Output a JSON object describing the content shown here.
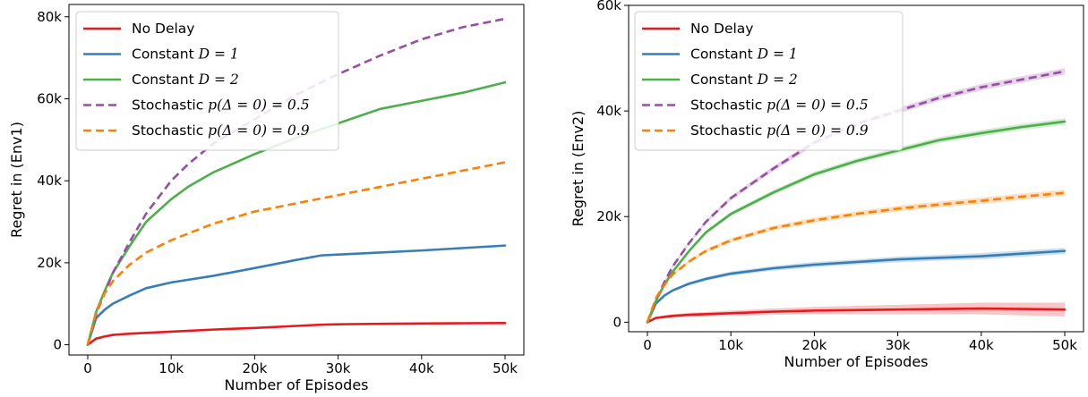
{
  "chart_data": [
    {
      "type": "line",
      "title": "",
      "xlabel": "Number of Episodes",
      "ylabel": "Regret in (Env1)",
      "xlim": [
        0,
        50000
      ],
      "ylim": [
        0,
        83000
      ],
      "xticks": [
        0,
        10000,
        20000,
        30000,
        40000,
        50000
      ],
      "xtick_labels": [
        "0",
        "10k",
        "20k",
        "30k",
        "40k",
        "50k"
      ],
      "yticks": [
        0,
        20000,
        40000,
        60000,
        80000
      ],
      "ytick_labels": [
        "0",
        "20k",
        "40k",
        "60k",
        "80k"
      ],
      "grid": false,
      "legend_position": "top-left",
      "series": [
        {
          "name": "No Delay",
          "color": "#e41a1c",
          "style": "solid",
          "label_math": "",
          "x": [
            0,
            1000,
            2000,
            3000,
            5000,
            10000,
            15000,
            20000,
            25000,
            28000,
            30000,
            35000,
            40000,
            45000,
            50000
          ],
          "values": [
            0,
            1500,
            2000,
            2400,
            2700,
            3200,
            3700,
            4100,
            4600,
            4900,
            5000,
            5100,
            5200,
            5250,
            5300
          ]
        },
        {
          "name": "Constant ",
          "color": "#377eb8",
          "style": "solid",
          "label_math": "D = 1",
          "x": [
            0,
            1000,
            2000,
            3000,
            5000,
            7000,
            10000,
            15000,
            20000,
            25000,
            28000,
            30000,
            35000,
            40000,
            45000,
            50000
          ],
          "values": [
            0,
            6500,
            8500,
            10000,
            12000,
            13800,
            15200,
            16800,
            18700,
            20700,
            21800,
            22000,
            22500,
            23000,
            23600,
            24200
          ]
        },
        {
          "name": "Constant ",
          "color": "#4daf4a",
          "style": "solid",
          "label_math": "D = 2",
          "x": [
            0,
            1000,
            2000,
            3000,
            5000,
            7000,
            10000,
            12000,
            15000,
            20000,
            25000,
            30000,
            35000,
            40000,
            45000,
            50000
          ],
          "values": [
            0,
            8000,
            13000,
            17500,
            24000,
            30000,
            35500,
            38500,
            42000,
            46500,
            50500,
            54000,
            57500,
            59500,
            61500,
            64000
          ]
        },
        {
          "name": "Stochastic ",
          "color": "#984ea3",
          "style": "dashed",
          "label_math": "p(Δ = 0) = 0.5",
          "x": [
            0,
            1000,
            2000,
            3000,
            5000,
            7000,
            10000,
            12000,
            15000,
            20000,
            25000,
            30000,
            35000,
            40000,
            45000,
            50000
          ],
          "values": [
            0,
            7500,
            12500,
            17500,
            25000,
            32000,
            40000,
            44000,
            49000,
            55000,
            61000,
            66000,
            70500,
            74500,
            77500,
            79500
          ]
        },
        {
          "name": "Stochastic ",
          "color": "#ff7f00",
          "style": "dashed",
          "label_math": "p(Δ = 0) = 0.9",
          "x": [
            0,
            1000,
            2000,
            3000,
            5000,
            7000,
            10000,
            15000,
            20000,
            25000,
            30000,
            35000,
            40000,
            45000,
            50000
          ],
          "values": [
            0,
            8000,
            12500,
            15500,
            19500,
            22500,
            25500,
            29500,
            32500,
            34500,
            36500,
            38500,
            40500,
            42500,
            44500
          ]
        }
      ]
    },
    {
      "type": "line",
      "title": "",
      "xlabel": "Number of Episodes",
      "ylabel": "Regret in (Env2)",
      "xlim": [
        0,
        50000
      ],
      "ylim": [
        0,
        60000
      ],
      "xticks": [
        0,
        10000,
        20000,
        30000,
        40000,
        50000
      ],
      "xtick_labels": [
        "0",
        "10k",
        "20k",
        "30k",
        "40k",
        "50k"
      ],
      "yticks": [
        0,
        20000,
        40000,
        60000
      ],
      "ytick_labels": [
        "0",
        "20k",
        "40k",
        "60k"
      ],
      "grid": false,
      "legend_position": "top-left",
      "series": [
        {
          "name": "No Delay",
          "color": "#e41a1c",
          "style": "solid",
          "label_math": "",
          "x": [
            0,
            1000,
            2000,
            3000,
            5000,
            10000,
            15000,
            20000,
            25000,
            30000,
            35000,
            40000,
            45000,
            50000
          ],
          "values": [
            0,
            800,
            1000,
            1200,
            1400,
            1700,
            2000,
            2200,
            2300,
            2400,
            2500,
            2600,
            2500,
            2400
          ],
          "band": [
            0,
            200,
            300,
            300,
            400,
            500,
            600,
            700,
            800,
            900,
            1000,
            1100,
            1200,
            1300
          ]
        },
        {
          "name": "Constant ",
          "color": "#377eb8",
          "style": "solid",
          "label_math": "D = 1",
          "x": [
            0,
            1000,
            2000,
            3000,
            5000,
            7000,
            10000,
            15000,
            20000,
            25000,
            30000,
            35000,
            40000,
            45000,
            50000
          ],
          "values": [
            0,
            3500,
            5000,
            6000,
            7300,
            8200,
            9200,
            10200,
            10900,
            11400,
            11900,
            12200,
            12500,
            13000,
            13500
          ],
          "band": [
            0,
            100,
            200,
            250,
            300,
            350,
            400,
            450,
            500,
            500,
            550,
            550,
            600,
            600,
            600
          ]
        },
        {
          "name": "Constant ",
          "color": "#4daf4a",
          "style": "solid",
          "label_math": "D = 2",
          "x": [
            0,
            1000,
            2000,
            3000,
            5000,
            7000,
            10000,
            15000,
            20000,
            25000,
            30000,
            35000,
            40000,
            45000,
            50000
          ],
          "values": [
            0,
            4000,
            7000,
            9500,
            13500,
            17000,
            20500,
            24500,
            28000,
            30500,
            32500,
            34500,
            35800,
            37000,
            38000
          ],
          "band": [
            0,
            100,
            200,
            250,
            300,
            350,
            400,
            450,
            500,
            500,
            550,
            550,
            600,
            600,
            600
          ]
        },
        {
          "name": "Stochastic ",
          "color": "#984ea3",
          "style": "dashed",
          "label_math": "p(Δ = 0) = 0.5",
          "x": [
            0,
            1000,
            2000,
            3000,
            5000,
            7000,
            10000,
            15000,
            20000,
            25000,
            30000,
            35000,
            40000,
            45000,
            50000
          ],
          "values": [
            0,
            4200,
            7500,
            10500,
            15000,
            19000,
            23500,
            29000,
            34000,
            37500,
            40000,
            42500,
            44500,
            46000,
            47500
          ],
          "band": [
            0,
            100,
            200,
            250,
            300,
            350,
            400,
            450,
            500,
            500,
            550,
            550,
            600,
            600,
            600
          ]
        },
        {
          "name": "Stochastic ",
          "color": "#ff7f00",
          "style": "dashed",
          "label_math": "p(Δ = 0) = 0.9",
          "x": [
            0,
            1000,
            2000,
            3000,
            5000,
            7000,
            10000,
            15000,
            20000,
            25000,
            30000,
            35000,
            40000,
            45000,
            50000
          ],
          "values": [
            0,
            4500,
            7000,
            9000,
            11500,
            13500,
            15500,
            17800,
            19300,
            20500,
            21500,
            22300,
            23000,
            23800,
            24500
          ],
          "band": [
            0,
            100,
            200,
            250,
            300,
            350,
            400,
            450,
            500,
            500,
            550,
            550,
            600,
            600,
            600
          ]
        }
      ]
    }
  ]
}
